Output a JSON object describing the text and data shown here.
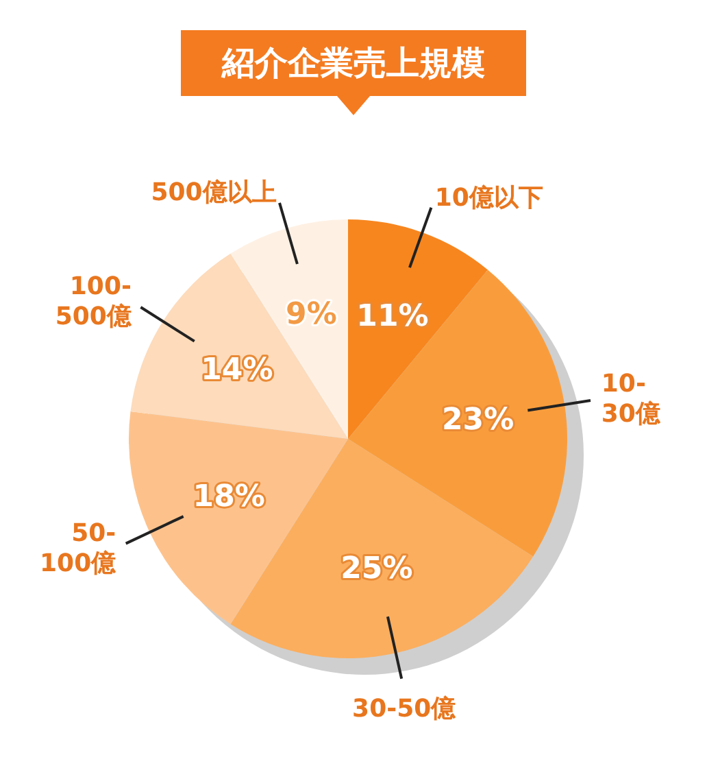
{
  "chart_data": {
    "type": "pie",
    "title": "紹介企業売上規模",
    "categories": [
      "10億以下",
      "10-30億",
      "30-50億",
      "50-100億",
      "100-500億",
      "500億以上"
    ],
    "values": [
      11,
      23,
      25,
      18,
      14,
      9
    ],
    "colors": [
      "#f7861f",
      "#f99d3c",
      "#fbae5e",
      "#fdc28c",
      "#fddbbb",
      "#fef1e4"
    ],
    "value_labels": [
      "11%",
      "23%",
      "25%",
      "18%",
      "14%",
      "9%"
    ]
  }
}
